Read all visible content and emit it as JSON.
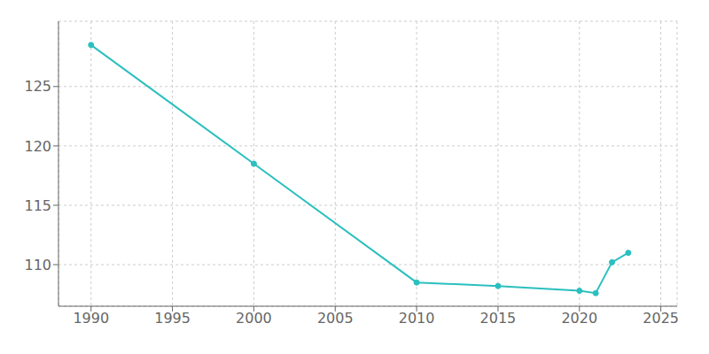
{
  "chart_data": {
    "type": "line",
    "x": [
      1990,
      2000,
      2010,
      2015,
      2020,
      2021,
      2022,
      2023
    ],
    "values": [
      128.5,
      118.5,
      108.5,
      108.2,
      107.8,
      107.6,
      110.2,
      111.0
    ],
    "color": "#2BBFBF",
    "marker": "circle",
    "xlim": [
      1988,
      2026
    ],
    "ylim": [
      106.5,
      130.5
    ],
    "xticks": [
      1990,
      1995,
      2000,
      2005,
      2010,
      2015,
      2020,
      2025
    ],
    "yticks": [
      110,
      115,
      120,
      125
    ],
    "grid": true
  }
}
